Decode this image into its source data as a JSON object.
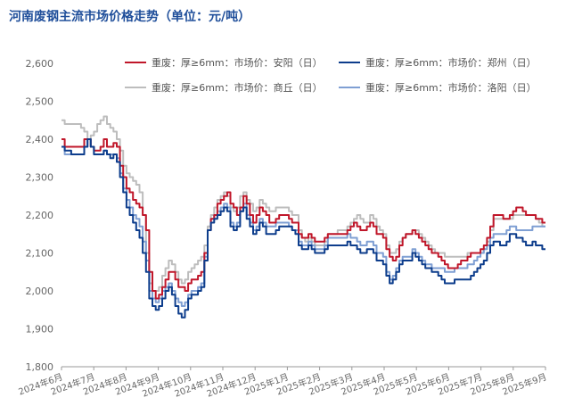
{
  "chart_data": {
    "type": "line",
    "title": "河南废钢主流市场价格走势（单位：元/吨）",
    "ylim": [
      1800,
      2600
    ],
    "yticks": [
      "1,800",
      "1,900",
      "2,000",
      "2,100",
      "2,200",
      "2,300",
      "2,400",
      "2,500",
      "2,600"
    ],
    "ytick_values": [
      1800,
      1900,
      2000,
      2100,
      2200,
      2300,
      2400,
      2500,
      2600
    ],
    "xticks": [
      "2024年6月",
      "2024年7月",
      "2024年8月",
      "2024年9月",
      "2024年10月",
      "2024年11月",
      "2024年12月",
      "2025年1月",
      "2025年2月",
      "2025年3月",
      "2025年4月",
      "2025年5月",
      "2025年6月",
      "2025年7月",
      "2025年8月",
      "2025年9月"
    ],
    "grid": false,
    "legend_position": "top",
    "series": [
      {
        "name": "重废：厚≥6mm：市场价：安阳（日）",
        "color": "#c0172a",
        "values": [
          2400,
          2380,
          2380,
          2380,
          2380,
          2380,
          2380,
          2400,
          2400,
          2380,
          2370,
          2370,
          2380,
          2400,
          2380,
          2380,
          2390,
          2380,
          2330,
          2300,
          2270,
          2260,
          2240,
          2230,
          2220,
          2200,
          2160,
          2050,
          2000,
          1980,
          1990,
          2010,
          2030,
          2050,
          2050,
          2030,
          2010,
          2010,
          2000,
          2020,
          2030,
          2030,
          2040,
          2050,
          2100,
          2160,
          2190,
          2200,
          2230,
          2240,
          2250,
          2260,
          2230,
          2220,
          2200,
          2220,
          2250,
          2230,
          2200,
          2180,
          2200,
          2220,
          2210,
          2200,
          2180,
          2180,
          2190,
          2200,
          2200,
          2200,
          2190,
          2180,
          2180,
          2150,
          2140,
          2140,
          2150,
          2140,
          2130,
          2130,
          2130,
          2140,
          2150,
          2150,
          2150,
          2150,
          2150,
          2150,
          2160,
          2170,
          2180,
          2170,
          2160,
          2160,
          2170,
          2180,
          2170,
          2150,
          2150,
          2140,
          2110,
          2090,
          2080,
          2090,
          2120,
          2140,
          2150,
          2150,
          2160,
          2150,
          2140,
          2130,
          2120,
          2110,
          2100,
          2100,
          2090,
          2080,
          2070,
          2060,
          2060,
          2060,
          2070,
          2080,
          2080,
          2090,
          2100,
          2100,
          2100,
          2110,
          2120,
          2140,
          2170,
          2200,
          2200,
          2200,
          2190,
          2190,
          2200,
          2210,
          2220,
          2220,
          2210,
          2200,
          2200,
          2200,
          2190,
          2190,
          2180,
          2180
        ]
      },
      {
        "name": "重废：厚≥6mm：市场价：郑州（日）",
        "color": "#0d3d8c",
        "values": [
          2380,
          2370,
          2370,
          2360,
          2360,
          2360,
          2360,
          2380,
          2400,
          2380,
          2360,
          2360,
          2360,
          2370,
          2360,
          2350,
          2360,
          2340,
          2300,
          2260,
          2220,
          2200,
          2180,
          2160,
          2140,
          2100,
          2050,
          1980,
          1960,
          1950,
          1960,
          1980,
          2000,
          2010,
          1990,
          1960,
          1940,
          1930,
          1950,
          1980,
          1990,
          1990,
          2000,
          2010,
          2080,
          2160,
          2180,
          2190,
          2200,
          2210,
          2220,
          2210,
          2170,
          2160,
          2170,
          2210,
          2220,
          2190,
          2170,
          2150,
          2160,
          2180,
          2170,
          2150,
          2150,
          2150,
          2160,
          2170,
          2170,
          2170,
          2170,
          2160,
          2150,
          2120,
          2110,
          2110,
          2120,
          2110,
          2100,
          2100,
          2100,
          2110,
          2120,
          2120,
          2120,
          2120,
          2120,
          2120,
          2130,
          2120,
          2120,
          2110,
          2100,
          2100,
          2110,
          2110,
          2100,
          2080,
          2080,
          2070,
          2040,
          2020,
          2030,
          2050,
          2070,
          2080,
          2080,
          2080,
          2100,
          2090,
          2080,
          2070,
          2060,
          2060,
          2050,
          2050,
          2040,
          2030,
          2020,
          2020,
          2020,
          2030,
          2030,
          2030,
          2030,
          2030,
          2040,
          2050,
          2060,
          2070,
          2080,
          2100,
          2120,
          2130,
          2130,
          2120,
          2120,
          2130,
          2150,
          2150,
          2140,
          2140,
          2130,
          2120,
          2120,
          2130,
          2120,
          2120,
          2110,
          2110
        ]
      },
      {
        "name": "重废：厚≥6mm：市场价：商丘（日）",
        "color": "#bdbdbd",
        "values": [
          2450,
          2440,
          2440,
          2440,
          2440,
          2440,
          2430,
          2420,
          2400,
          2410,
          2420,
          2440,
          2450,
          2460,
          2440,
          2430,
          2420,
          2400,
          2370,
          2330,
          2310,
          2300,
          2290,
          2280,
          2260,
          2200,
          2100,
          2020,
          2000,
          2000,
          2010,
          2040,
          2060,
          2080,
          2070,
          2050,
          2030,
          2020,
          2030,
          2050,
          2060,
          2070,
          2080,
          2090,
          2120,
          2170,
          2200,
          2220,
          2240,
          2250,
          2260,
          2250,
          2220,
          2210,
          2220,
          2250,
          2260,
          2240,
          2230,
          2210,
          2220,
          2240,
          2230,
          2220,
          2210,
          2210,
          2220,
          2220,
          2220,
          2220,
          2210,
          2200,
          2200,
          2160,
          2140,
          2130,
          2140,
          2130,
          2120,
          2120,
          2120,
          2130,
          2150,
          2150,
          2150,
          2160,
          2160,
          2160,
          2170,
          2180,
          2190,
          2200,
          2190,
          2180,
          2180,
          2200,
          2190,
          2170,
          2160,
          2150,
          2120,
          2100,
          2100,
          2110,
          2130,
          2140,
          2150,
          2150,
          2160,
          2160,
          2150,
          2140,
          2130,
          2120,
          2110,
          2100,
          2100,
          2100,
          2090,
          2090,
          2090,
          2090,
          2090,
          2090,
          2090,
          2100,
          2100,
          2100,
          2100,
          2100,
          2110,
          2130,
          2160,
          2190,
          2190,
          2190,
          2190,
          2190,
          2190,
          2200,
          2200,
          2200,
          2200,
          2200,
          2200,
          2200,
          2190,
          2180,
          2170,
          2170
        ]
      },
      {
        "name": "重废：厚≥6mm：市场价：洛阳（日）",
        "color": "#7f9fd3",
        "values": [
          2380,
          2360,
          2360,
          2360,
          2360,
          2360,
          2360,
          2380,
          2400,
          2380,
          2360,
          2360,
          2360,
          2370,
          2360,
          2360,
          2360,
          2350,
          2310,
          2270,
          2240,
          2220,
          2200,
          2190,
          2170,
          2130,
          2080,
          2000,
          1980,
          1970,
          1980,
          2000,
          2010,
          2020,
          2000,
          1980,
          1970,
          1960,
          1970,
          1990,
          2000,
          2000,
          2010,
          2020,
          2090,
          2160,
          2190,
          2200,
          2210,
          2220,
          2230,
          2220,
          2180,
          2170,
          2180,
          2210,
          2230,
          2200,
          2180,
          2160,
          2170,
          2190,
          2180,
          2170,
          2170,
          2170,
          2180,
          2180,
          2180,
          2180,
          2170,
          2160,
          2160,
          2130,
          2120,
          2120,
          2130,
          2120,
          2110,
          2110,
          2110,
          2120,
          2140,
          2140,
          2140,
          2140,
          2140,
          2140,
          2150,
          2140,
          2140,
          2130,
          2120,
          2120,
          2130,
          2130,
          2120,
          2100,
          2100,
          2090,
          2050,
          2030,
          2040,
          2060,
          2080,
          2090,
          2090,
          2090,
          2110,
          2100,
          2090,
          2080,
          2070,
          2070,
          2060,
          2060,
          2060,
          2060,
          2050,
          2050,
          2050,
          2060,
          2060,
          2060,
          2060,
          2070,
          2070,
          2080,
          2090,
          2100,
          2110,
          2120,
          2140,
          2150,
          2150,
          2150,
          2150,
          2160,
          2170,
          2170,
          2160,
          2160,
          2160,
          2160,
          2160,
          2170,
          2170,
          2170,
          2170,
          2170
        ]
      }
    ]
  }
}
